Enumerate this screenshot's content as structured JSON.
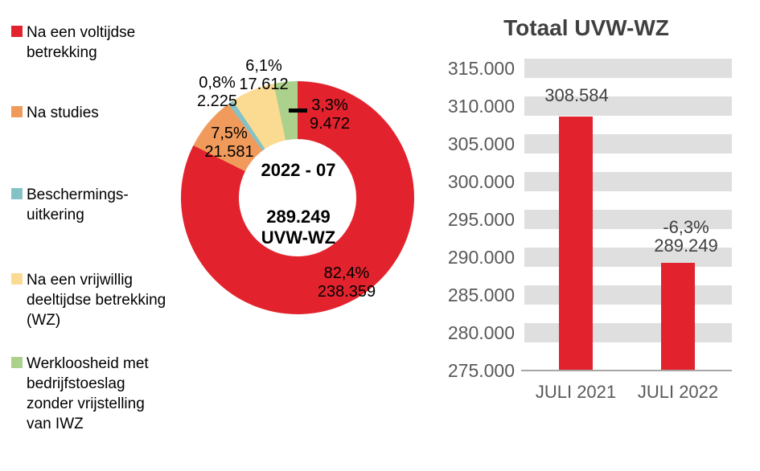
{
  "colors": {
    "red": "#e2232e",
    "orange": "#f09b5c",
    "teal": "#85c2c5",
    "yellow": "#fbda92",
    "green": "#abd18c",
    "grid_band": "#dfdfdf",
    "axis_line": "#a6a6a6",
    "title_text": "#404040",
    "tick_text": "#595959"
  },
  "legend": {
    "items": [
      {
        "label": "Na een voltijdse\nbetrekking",
        "color": "#e2232e"
      },
      {
        "label": "Na studies",
        "color": "#f09b5c"
      },
      {
        "label": "Beschermings-\nuitkering",
        "color": "#85c2c5"
      },
      {
        "label": "Na een vrijwillig\ndeeltijdse betrekking\n(WZ)",
        "color": "#fbda92"
      },
      {
        "label": "Werkloosheid met\nbedrijfstoeslag\nzonder vrijstelling\nvan IWZ",
        "color": "#abd18c"
      }
    ]
  },
  "chart_data": [
    {
      "type": "pie",
      "donut": true,
      "center_label": {
        "period": "2022 - 07",
        "total_and_unit": "289.249\nUVW-WZ"
      },
      "total": 289249,
      "slices": [
        {
          "name": "Na een voltijdse betrekking",
          "value": 238359,
          "pct": 82.4,
          "pct_label": "82,4%",
          "value_label": "238.359",
          "color": "#e2232e"
        },
        {
          "name": "Na studies",
          "value": 21581,
          "pct": 7.5,
          "pct_label": "7,5%",
          "value_label": "21.581",
          "color": "#f09b5c"
        },
        {
          "name": "Beschermings-uitkering",
          "value": 2225,
          "pct": 0.8,
          "pct_label": "0,8%",
          "value_label": "2.225",
          "color": "#85c2c5"
        },
        {
          "name": "Na een vrijwillig deeltijdse betrekking (WZ)",
          "value": 17612,
          "pct": 6.1,
          "pct_label": "6,1%",
          "value_label": "17.612",
          "color": "#fbda92"
        },
        {
          "name": "Werkloosheid met bedrijfstoeslag zonder vrijstelling van IWZ",
          "value": 9472,
          "pct": 3.3,
          "pct_label": "3,3%",
          "value_label": "9.472",
          "color": "#abd18c"
        }
      ]
    },
    {
      "type": "bar",
      "title": "Totaal UVW-WZ",
      "categories": [
        "JULI 2021",
        "JULI 2022"
      ],
      "values": [
        308584,
        289249
      ],
      "bar_labels": [
        "308.584",
        "-6,3%\n289.249"
      ],
      "y_ticks": [
        "315.000",
        "310.000",
        "305.000",
        "300.000",
        "295.000",
        "290.000",
        "285.000",
        "280.000",
        "275.000"
      ],
      "ylim": [
        275000,
        315000
      ],
      "grid": "horizontal-bands",
      "legend_position": "none",
      "bar_color": "#e2232e"
    }
  ]
}
